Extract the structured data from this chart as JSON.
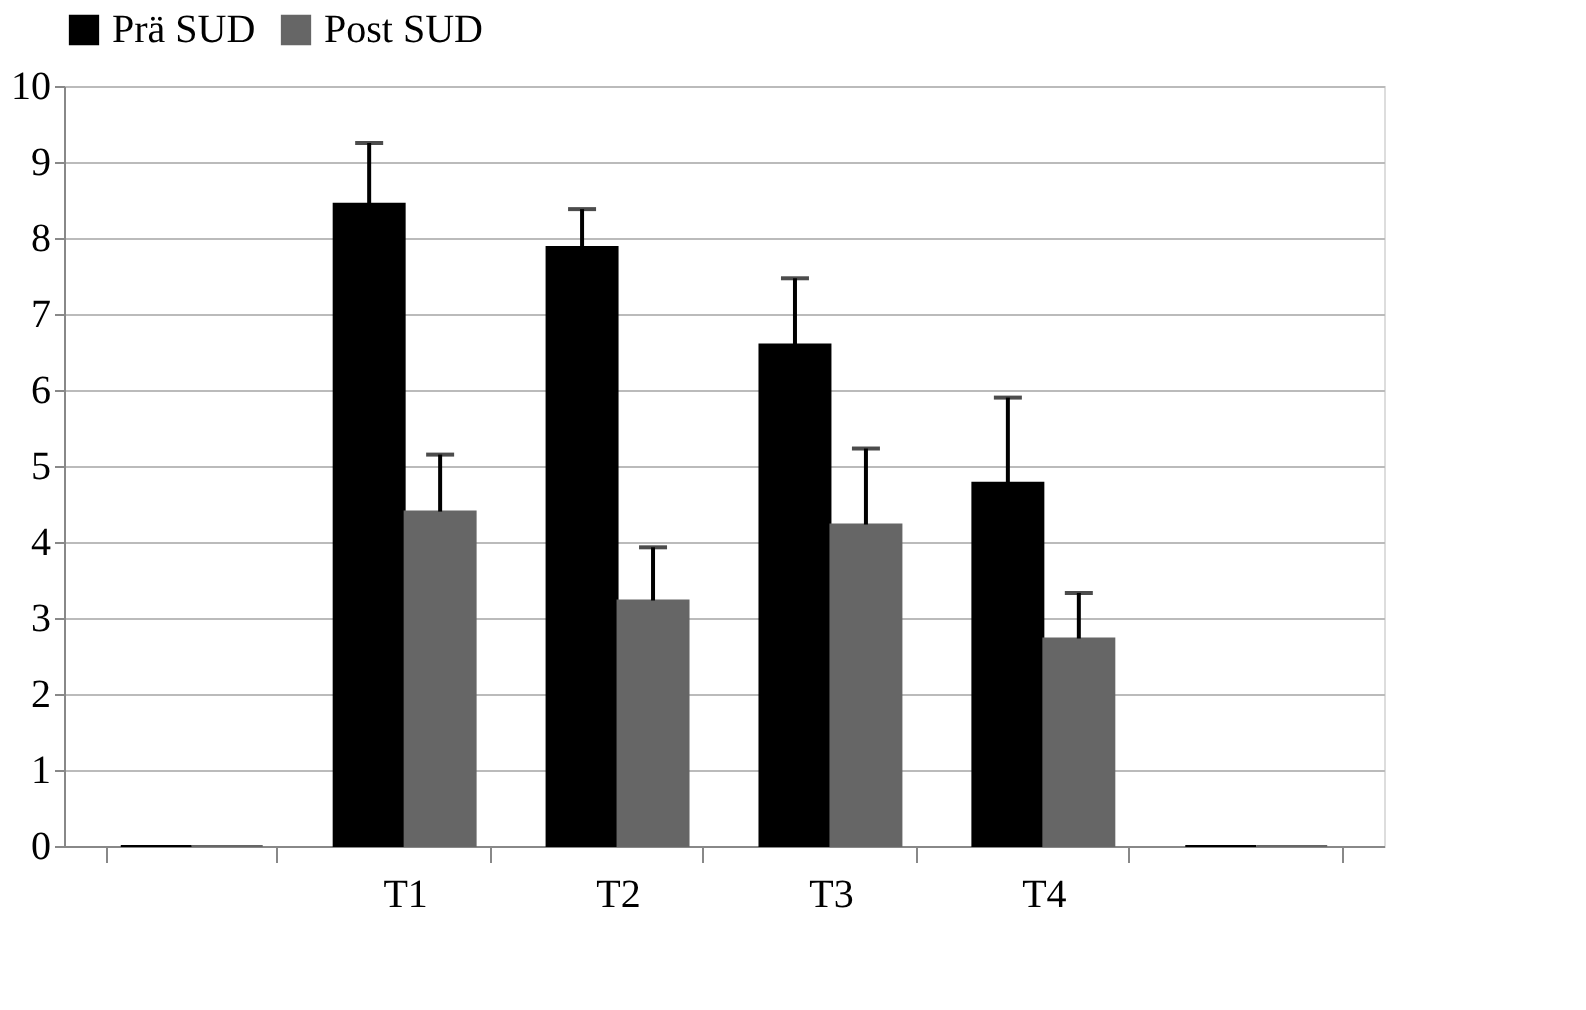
{
  "chart_data": {
    "type": "bar",
    "categories": [
      null,
      "T1",
      "T2",
      "T3",
      "T4",
      null
    ],
    "series": [
      {
        "name": "Prä SUD",
        "color": "#000000",
        "values": [
          0,
          8.45,
          7.88,
          6.6,
          4.78,
          0
        ],
        "errors": [
          null,
          [
            8.45,
            9.25
          ],
          [
            7.88,
            8.38
          ],
          [
            6.6,
            7.47
          ],
          [
            4.78,
            5.9
          ],
          null
        ]
      },
      {
        "name": "Post SUD",
        "color": "#666666",
        "values": [
          0,
          4.4,
          3.23,
          4.23,
          2.73,
          0
        ],
        "errors": [
          null,
          [
            4.4,
            5.15
          ],
          [
            3.23,
            3.93
          ],
          [
            4.23,
            5.23
          ],
          [
            2.73,
            3.33
          ],
          null
        ]
      }
    ],
    "ylim": [
      0,
      10
    ],
    "yticks": [
      0,
      1,
      2,
      3,
      4,
      5,
      6,
      7,
      8,
      9,
      10
    ],
    "grid": "y",
    "legend": "top"
  }
}
